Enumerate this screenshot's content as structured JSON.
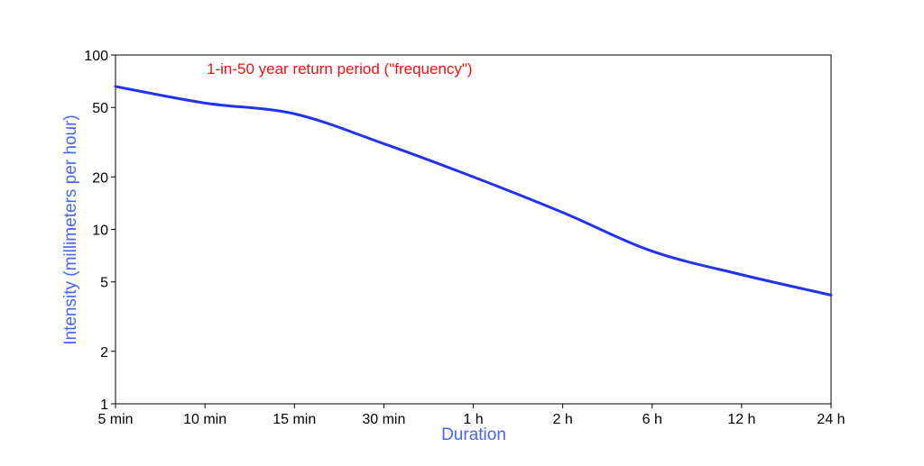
{
  "chart_data": {
    "type": "line",
    "annotation": "1-in-50 year return period (\"frequency\")",
    "xlabel": "Duration",
    "ylabel": "Intensity (millimeters per hour)",
    "y_scale": "log",
    "ylim": [
      1,
      100
    ],
    "x_tick_labels": [
      "5 min",
      "10 min",
      "15 min",
      "30 min",
      "1 h",
      "2 h",
      "6 h",
      "12 h",
      "24 h"
    ],
    "y_ticks": [
      1,
      2,
      5,
      10,
      20,
      50,
      100
    ],
    "y_tick_labels": [
      "1",
      "2",
      "5",
      "10",
      "20",
      "50",
      "100"
    ],
    "grid": false,
    "series": [
      {
        "color": "#2233ee",
        "x": [
          "5 min",
          "10 min",
          "15 min",
          "30 min",
          "1 h",
          "2 h",
          "6 h",
          "12 h",
          "24 h"
        ],
        "values": [
          66,
          53,
          46,
          31,
          20,
          12.5,
          7.5,
          5.5,
          4.2
        ]
      }
    ]
  },
  "colors": {
    "annotation": "#ee1111",
    "axis_title": "#4466ff",
    "line": "#2233ee"
  }
}
